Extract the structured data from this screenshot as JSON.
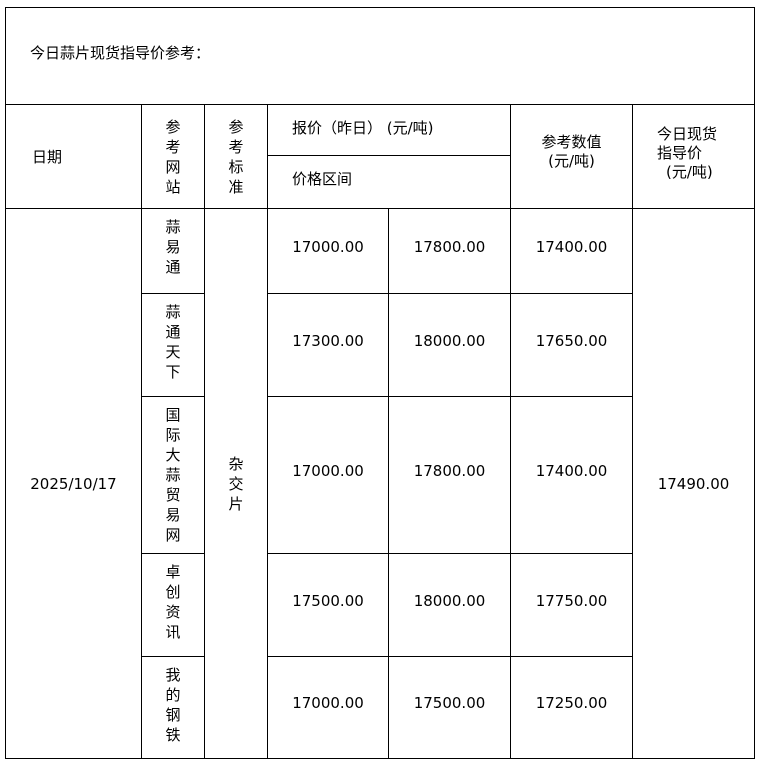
{
  "title": "今日蒜片现货指导价参考：",
  "headers": {
    "date": "日期",
    "site": "参考网站",
    "standard": "参考标准",
    "quote": "报价（昨日）  (元/吨)",
    "range": "价格区间",
    "ref_value": "参考数值",
    "ref_unit": "(元/吨)",
    "guide_l1": "今日现货",
    "guide_l2": "指导价",
    "guide_unit": "(元/吨)"
  },
  "date": "2025/10/17",
  "standard": "杂交片",
  "guide_price": "17490.00",
  "rows": [
    {
      "site": "蒜易通",
      "low": "17000.00",
      "high": "17800.00",
      "ref": "17400.00"
    },
    {
      "site": "蒜通天下",
      "low": "17300.00",
      "high": "18000.00",
      "ref": "17650.00"
    },
    {
      "site": "国际大蒜贸易网",
      "low": "17000.00",
      "high": "17800.00",
      "ref": "17400.00"
    },
    {
      "site": "卓创资讯",
      "low": "17500.00",
      "high": "18000.00",
      "ref": "17750.00"
    },
    {
      "site": "我的钢铁",
      "low": "17000.00",
      "high": "17500.00",
      "ref": "17250.00"
    }
  ]
}
